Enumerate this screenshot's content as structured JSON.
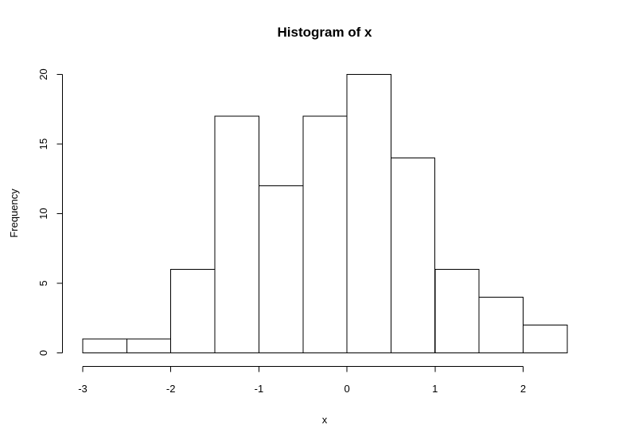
{
  "window": {
    "background": "#ffffff"
  },
  "chart_data": {
    "type": "bar",
    "subtype": "histogram",
    "title": "Histogram of x",
    "xlabel": "x",
    "ylabel": "Frequency",
    "bin_breaks": [
      -3,
      -2.5,
      -2,
      -1.5,
      -1,
      -0.5,
      0,
      0.5,
      1,
      1.5,
      2,
      2.5
    ],
    "counts": [
      1,
      1,
      6,
      17,
      12,
      17,
      20,
      14,
      6,
      4,
      2
    ],
    "xticks": [
      "-3",
      "-2",
      "-1",
      "0",
      "1",
      "2"
    ],
    "xtick_values": [
      -3,
      -2,
      -1,
      0,
      1,
      2
    ],
    "yticks": [
      "0",
      "5",
      "10",
      "15",
      "20"
    ],
    "ytick_values": [
      0,
      5,
      10,
      15,
      20
    ],
    "xlim": [
      -3,
      2.5
    ],
    "ylim": [
      0,
      20
    ],
    "grid": "off",
    "legend": "none",
    "bar_fill": "#ffffff",
    "bar_stroke": "#000000",
    "axis_color": "#000000",
    "text_color": "#000000"
  }
}
